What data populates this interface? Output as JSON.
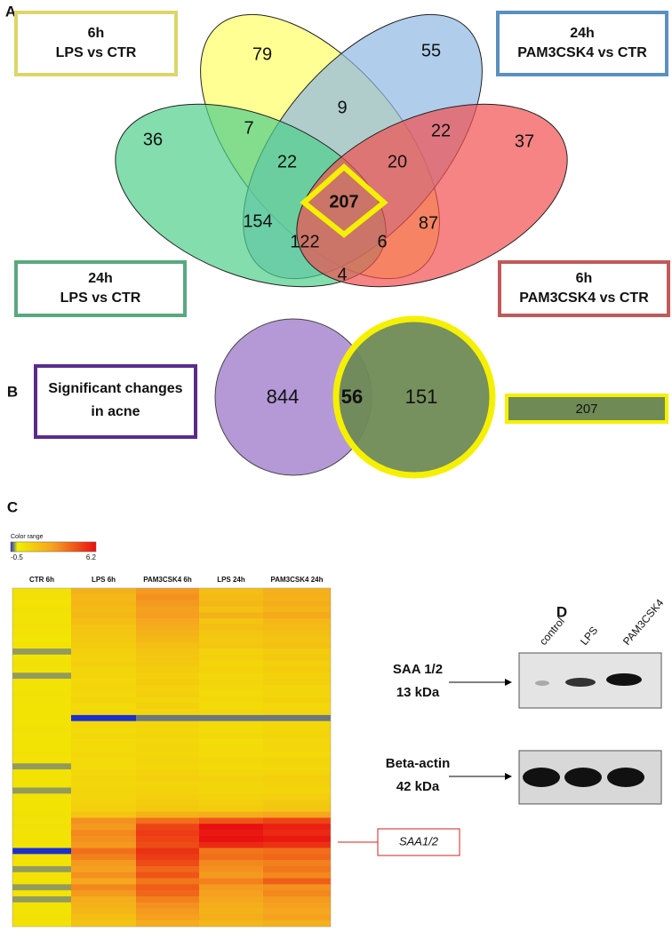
{
  "panel_a": {
    "letter": "A",
    "boxes": [
      {
        "lines": [
          "6h",
          "LPS vs CTR"
        ]
      },
      {
        "lines": [
          "24h",
          "PAM3CSK4 vs CTR"
        ]
      },
      {
        "lines": [
          "24h",
          "LPS vs CTR"
        ]
      },
      {
        "lines": [
          "6h",
          "PAM3CSK4 vs CTR"
        ]
      }
    ],
    "regions": [
      79,
      55,
      9,
      7,
      22,
      36,
      37,
      22,
      20,
      207,
      154,
      87,
      122,
      6,
      4
    ]
  },
  "panel_b": {
    "letter": "B",
    "label": [
      "Significant changes",
      "in acne"
    ],
    "acne_only": 844,
    "overlap": 56,
    "venn_only": 151,
    "venn_total": 207
  },
  "panel_c": {
    "letter": "C",
    "color_range": {
      "title": "Color range",
      "min": -0.5,
      "max": 6.2
    },
    "columns": [
      "CTR 6h",
      "LPS 6h",
      "PAM3CSK4 6h",
      "LPS 24h",
      "PAM3CSK4 24h"
    ],
    "callout": "SAA1/2",
    "heatmap": [
      [
        0.6,
        2.2,
        3.0,
        1.8,
        2.3
      ],
      [
        0.6,
        2.0,
        3.2,
        1.9,
        2.2
      ],
      [
        0.5,
        2.1,
        3.0,
        2.0,
        2.4
      ],
      [
        0.6,
        1.9,
        2.8,
        1.7,
        2.1
      ],
      [
        0.5,
        2.0,
        2.9,
        2.2,
        2.5
      ],
      [
        0.5,
        1.8,
        2.6,
        1.6,
        2.0
      ],
      [
        0.6,
        1.6,
        2.4,
        1.8,
        1.9
      ],
      [
        0.5,
        1.5,
        2.2,
        1.5,
        1.8
      ],
      [
        0.4,
        1.4,
        2.0,
        1.4,
        1.6
      ],
      [
        0.5,
        1.3,
        1.8,
        1.5,
        1.7
      ],
      [
        -0.2,
        1.2,
        1.6,
        1.1,
        1.3
      ],
      [
        0.5,
        1.1,
        1.5,
        1.2,
        1.4
      ],
      [
        0.6,
        1.2,
        1.4,
        1.0,
        1.2
      ],
      [
        0.5,
        1.0,
        1.3,
        1.1,
        1.3
      ],
      [
        -0.2,
        1.0,
        1.2,
        0.9,
        1.1
      ],
      [
        0.5,
        0.9,
        1.3,
        1.0,
        1.2
      ],
      [
        0.5,
        1.0,
        1.1,
        0.9,
        1.0
      ],
      [
        0.6,
        0.9,
        1.2,
        0.8,
        1.0
      ],
      [
        0.5,
        1.0,
        1.0,
        0.9,
        1.1
      ],
      [
        0.5,
        0.8,
        1.1,
        0.8,
        0.9
      ],
      [
        0.5,
        0.9,
        1.0,
        0.9,
        1.0
      ],
      [
        0.5,
        -0.5,
        -0.3,
        -0.3,
        -0.3
      ],
      [
        0.5,
        0.9,
        1.0,
        0.8,
        0.9
      ],
      [
        0.6,
        0.8,
        0.9,
        0.8,
        0.9
      ],
      [
        0.5,
        0.9,
        1.0,
        0.9,
        1.0
      ],
      [
        0.5,
        0.8,
        0.9,
        0.7,
        0.9
      ],
      [
        0.5,
        0.8,
        1.0,
        0.8,
        0.9
      ],
      [
        0.6,
        0.9,
        0.9,
        0.8,
        0.8
      ],
      [
        0.5,
        0.8,
        1.0,
        0.9,
        1.0
      ],
      [
        -0.2,
        0.8,
        0.9,
        0.8,
        0.9
      ],
      [
        0.5,
        0.9,
        1.1,
        1.0,
        1.0
      ],
      [
        0.5,
        1.0,
        1.2,
        1.1,
        1.2
      ],
      [
        0.5,
        0.9,
        1.0,
        1.0,
        1.1
      ],
      [
        -0.2,
        1.0,
        1.1,
        1.0,
        1.0
      ],
      [
        0.5,
        1.0,
        1.2,
        1.1,
        1.2
      ],
      [
        0.5,
        1.1,
        1.3,
        1.2,
        1.4
      ],
      [
        0.5,
        1.2,
        1.4,
        1.3,
        1.5
      ],
      [
        0.6,
        1.6,
        2.2,
        2.4,
        2.6
      ],
      [
        0.5,
        3.2,
        4.0,
        4.6,
        5.0
      ],
      [
        0.6,
        3.0,
        5.0,
        6.2,
        5.8
      ],
      [
        0.5,
        3.4,
        5.2,
        6.0,
        5.6
      ],
      [
        0.5,
        3.2,
        5.0,
        6.2,
        6.0
      ],
      [
        0.5,
        3.0,
        4.8,
        5.6,
        5.4
      ],
      [
        -0.5,
        4.0,
        5.4,
        3.8,
        4.0
      ],
      [
        0.6,
        3.6,
        5.2,
        4.0,
        4.2
      ],
      [
        0.5,
        3.0,
        4.8,
        3.4,
        3.6
      ],
      [
        -0.2,
        2.8,
        4.2,
        3.2,
        3.8
      ],
      [
        0.5,
        3.2,
        4.6,
        3.0,
        3.4
      ],
      [
        0.5,
        2.6,
        3.8,
        3.6,
        4.4
      ],
      [
        -0.2,
        3.4,
        4.4,
        3.0,
        3.2
      ],
      [
        0.5,
        3.0,
        4.2,
        2.8,
        3.4
      ],
      [
        -0.2,
        2.4,
        3.6,
        2.6,
        3.0
      ],
      [
        0.5,
        2.2,
        3.2,
        2.4,
        2.8
      ],
      [
        0.5,
        2.0,
        3.0,
        2.2,
        2.6
      ],
      [
        0.6,
        1.8,
        2.8,
        2.4,
        2.8
      ],
      [
        0.5,
        1.6,
        2.4,
        2.0,
        2.2
      ]
    ]
  },
  "panel_d": {
    "letter": "D",
    "lanes": [
      "control",
      "LPS",
      "PAM3CSK4"
    ],
    "blots": [
      {
        "name": "SAA 1/2",
        "size": "13 kDa"
      },
      {
        "name": "Beta-actin",
        "size": "42 kDa"
      }
    ]
  }
}
